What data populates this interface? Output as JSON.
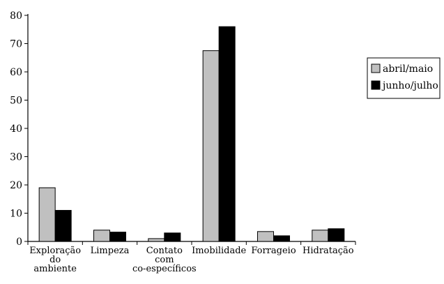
{
  "chart_data": {
    "type": "bar",
    "title": "",
    "xlabel": "",
    "ylabel": "",
    "ylim": [
      0,
      80
    ],
    "yticks": [
      0,
      10,
      20,
      30,
      40,
      50,
      60,
      70,
      80
    ],
    "grid": false,
    "legend_position": "right",
    "categories": [
      [
        "Exploração",
        "do",
        "ambiente"
      ],
      [
        "Limpeza"
      ],
      [
        "Contato",
        "com",
        "co-específicos"
      ],
      [
        "Imobilidade"
      ],
      [
        "Forrageio"
      ],
      [
        "Hidratação"
      ]
    ],
    "series": [
      {
        "name": "abril/maio",
        "color": "#c0c0c0",
        "values": [
          19,
          4,
          1,
          67.5,
          3.5,
          4
        ]
      },
      {
        "name": "junho/julho",
        "color": "#000000",
        "values": [
          11,
          3.3,
          3,
          76,
          2,
          4.5
        ]
      }
    ]
  }
}
